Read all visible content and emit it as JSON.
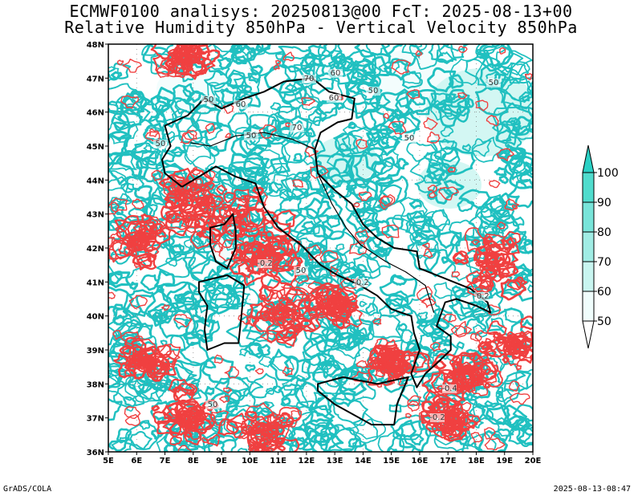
{
  "title_line1": "ECMWF0100 analisys: 20250813@00 FcT: 2025-08-13+00",
  "title_line2": "Relative Humidity 850hPa - Vertical Velocity 850hPa",
  "footer_left": "GrADS/COLA",
  "footer_right": "2025-08-13-08:47",
  "lon_labels": [
    "5E",
    "6E",
    "7E",
    "8E",
    "9E",
    "10E",
    "11E",
    "12E",
    "13E",
    "14E",
    "15E",
    "16E",
    "17E",
    "18E",
    "19E",
    "20E"
  ],
  "lat_labels": [
    "36N",
    "37N",
    "38N",
    "39N",
    "40N",
    "41N",
    "42N",
    "43N",
    "44N",
    "45N",
    "46N",
    "47N",
    "48N"
  ],
  "colorbar": {
    "values": [
      "50",
      "60",
      "70",
      "80",
      "90",
      "100"
    ],
    "colors": [
      "#f0fdfc",
      "#c8f5f0",
      "#a0ece4",
      "#78e4d9",
      "#50dccd"
    ]
  },
  "contour_labels": [
    "50",
    "60",
    "70",
    "60",
    "50",
    "60",
    "70",
    "50",
    "50",
    "50",
    "50",
    "50",
    "50",
    "-0.2",
    "-0.2",
    "-0.2",
    "-0.4",
    "-0.2"
  ],
  "colors": {
    "rh_contour": "#20c0c0",
    "omega_contour": "#f04040",
    "coast": "#000000",
    "grid": "#888888"
  }
}
